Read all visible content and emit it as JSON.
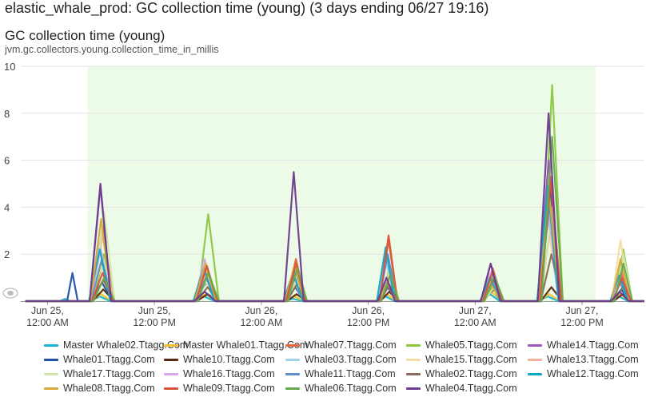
{
  "header": {
    "title": "elastic_whale_prod: GC collection time (young) (3 days ending 06/27 19:16)"
  },
  "chart_data": {
    "type": "line",
    "title": "GC collection time (young)",
    "subtitle": "jvm.gc.collectors.young.collection_time_in_millis",
    "ylim": [
      0,
      10
    ],
    "y_ticks": [
      "0",
      "2",
      "4",
      "6",
      "8",
      "10"
    ],
    "x_ticks": [
      {
        "line1": "Jun 25,",
        "line2": "12:00 AM"
      },
      {
        "line1": "Jun 25,",
        "line2": "12:00 PM"
      },
      {
        "line1": "Jun 26,",
        "line2": "12:00 AM"
      },
      {
        "line1": "Jun 26,",
        "line2": "12:00 PM"
      },
      {
        "line1": "Jun 27,",
        "line2": "12:00 AM"
      },
      {
        "line1": "Jun 27,",
        "line2": "12:00 PM"
      }
    ],
    "x_unit": "hours",
    "x_range": [
      -3,
      67
    ],
    "x_tick_values": [
      0,
      12,
      24,
      36,
      48,
      60
    ],
    "highlight_band": [
      4.5,
      61.5
    ],
    "grid": true,
    "legend_position": "bottom",
    "bursts": [
      {
        "center": 6.1,
        "width": 2.4
      },
      {
        "center": 17.8,
        "width": 2.4
      },
      {
        "center": 27.8,
        "width": 2.2
      },
      {
        "center": 38.2,
        "width": 2.0
      },
      {
        "center": 49.9,
        "width": 2.2
      },
      {
        "center": 56.4,
        "width": 2.4
      },
      {
        "center": 64.4,
        "width": 2.0
      }
    ],
    "series": [
      {
        "name": "Master Whale02.Ttagg.Com",
        "color": "#1bb3d1",
        "peaks": [
          0.2,
          0.2,
          0.1,
          0.2,
          0.3,
          0.2,
          0.2
        ],
        "small": [
          [
            2.2,
            0.1
          ]
        ]
      },
      {
        "name": "Master Whale01.Ttagg.Com",
        "color": "#f2c12e",
        "peaks": [
          0.3,
          0.3,
          0.2,
          0.3,
          0.4,
          0.3,
          0.3
        ],
        "small": []
      },
      {
        "name": "Whale07.Ttagg.Com",
        "color": "#e8643c",
        "peaks": [
          3.2,
          1.5,
          1.8,
          2.6,
          1.4,
          5.3,
          1.2
        ],
        "small": []
      },
      {
        "name": "Whale05.Ttagg.Com",
        "color": "#8cc63f",
        "peaks": [
          2.0,
          3.7,
          1.0,
          1.5,
          0.8,
          9.2,
          2.2
        ],
        "small": []
      },
      {
        "name": "Whale14.Ttagg.Com",
        "color": "#9b59b6",
        "peaks": [
          4.9,
          1.2,
          1.0,
          0.8,
          1.6,
          6.0,
          0.8
        ],
        "small": []
      },
      {
        "name": "Whale01.Ttagg.Com",
        "color": "#1f4fa8",
        "peaks": [
          0.8,
          0.8,
          0.6,
          0.6,
          1.1,
          4.8,
          0.5
        ],
        "small": [
          [
            2.8,
            1.2
          ]
        ]
      },
      {
        "name": "Whale10.Ttagg.Com",
        "color": "#5c2a12",
        "peaks": [
          0.5,
          0.3,
          0.3,
          0.4,
          0.5,
          0.6,
          0.3
        ],
        "small": []
      },
      {
        "name": "Whale03.Ttagg.Com",
        "color": "#9fd3ec",
        "peaks": [
          2.5,
          1.0,
          1.2,
          1.8,
          0.9,
          3.5,
          1.0
        ],
        "small": []
      },
      {
        "name": "Whale15.Ttagg.Com",
        "color": "#f3dea2",
        "peaks": [
          1.5,
          0.9,
          0.8,
          1.0,
          0.7,
          2.8,
          2.6
        ],
        "small": []
      },
      {
        "name": "Whale13.Ttagg.Com",
        "color": "#f4b29a",
        "peaks": [
          2.8,
          1.3,
          1.4,
          1.2,
          1.0,
          3.2,
          1.4
        ],
        "small": []
      },
      {
        "name": "Whale17.Ttagg.Com",
        "color": "#cfe8a9",
        "peaks": [
          3.8,
          1.1,
          0.9,
          1.3,
          0.6,
          4.0,
          2.0
        ],
        "small": []
      },
      {
        "name": "Whale16.Ttagg.Com",
        "color": "#d9a6e6",
        "peaks": [
          2.2,
          1.8,
          1.1,
          0.9,
          1.2,
          3.8,
          1.0
        ],
        "small": []
      },
      {
        "name": "Whale11.Ttagg.Com",
        "color": "#5f8fc9",
        "peaks": [
          1.8,
          1.0,
          1.3,
          2.0,
          0.8,
          4.3,
          0.9
        ],
        "small": []
      },
      {
        "name": "Whale02.Ttagg.Com",
        "color": "#8a6b5e",
        "peaks": [
          0.9,
          0.6,
          0.7,
          0.7,
          0.9,
          2.0,
          0.6
        ],
        "small": []
      },
      {
        "name": "Whale12.Ttagg.Com",
        "color": "#11a7c4",
        "peaks": [
          2.2,
          1.4,
          1.2,
          2.3,
          1.0,
          4.9,
          1.1
        ],
        "small": []
      },
      {
        "name": "Whale08.Ttagg.Com",
        "color": "#d4a93c",
        "peaks": [
          3.5,
          1.6,
          1.5,
          0.8,
          0.7,
          4.5,
          1.8
        ],
        "small": []
      },
      {
        "name": "Whale09.Ttagg.Com",
        "color": "#d9533a",
        "peaks": [
          1.2,
          1.5,
          1.6,
          2.8,
          1.3,
          5.1,
          1.0
        ],
        "small": []
      },
      {
        "name": "Whale06.Ttagg.Com",
        "color": "#6aa84f",
        "peaks": [
          1.0,
          1.2,
          1.4,
          1.1,
          1.1,
          7.0,
          1.6
        ],
        "small": []
      },
      {
        "name": "Whale04.Ttagg.Com",
        "color": "#6b3b8f",
        "peaks": [
          5.0,
          0.4,
          5.5,
          1.0,
          1.6,
          8.0,
          0.4
        ],
        "small": []
      }
    ]
  }
}
